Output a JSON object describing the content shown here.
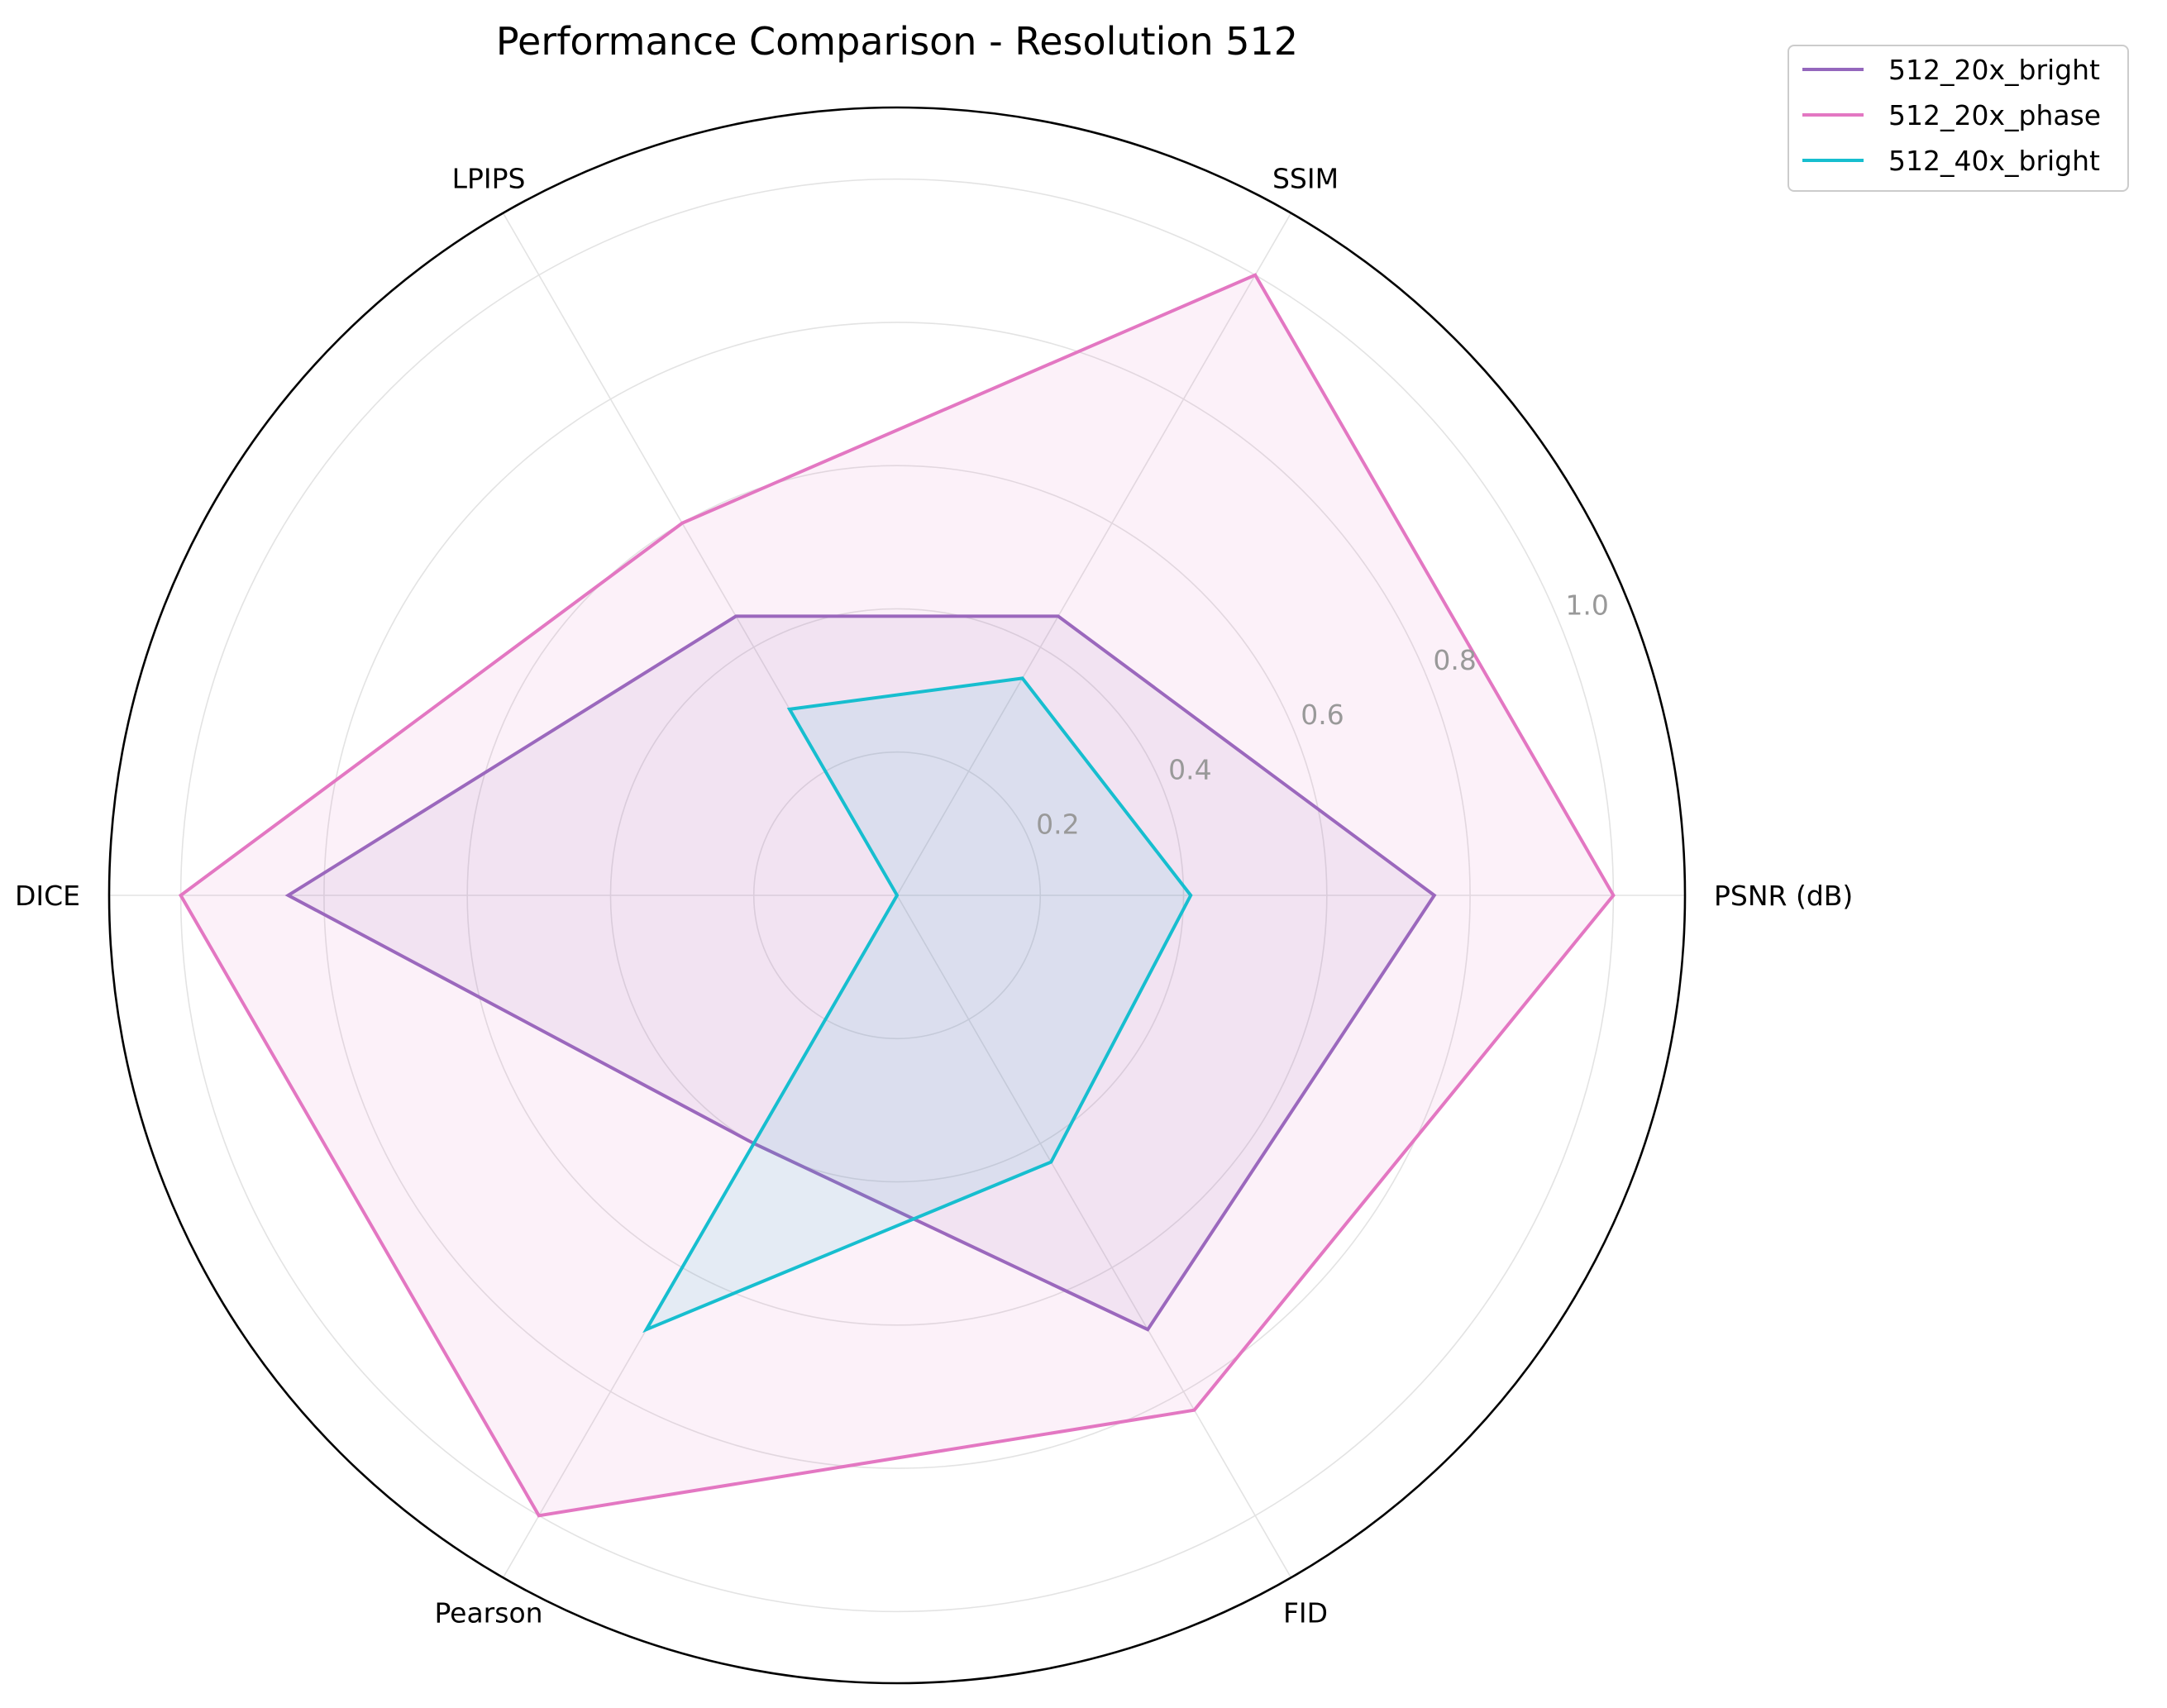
{
  "chart_data": {
    "type": "radar",
    "title": "Performance Comparison - Resolution 512",
    "axes": [
      "PSNR (dB)",
      "SSIM",
      "LPIPS",
      "DICE",
      "Pearson",
      "FID"
    ],
    "rlim": [
      0,
      1.1
    ],
    "rticks": [
      0.2,
      0.4,
      0.6,
      0.8,
      1.0
    ],
    "rtick_labels": [
      "0.2",
      "0.4",
      "0.6",
      "0.8",
      "1.0"
    ],
    "grid": true,
    "legend_position": "top-right, outside plot",
    "series": [
      {
        "name": "512_20x_bright",
        "color": "#9467bd",
        "fill_opacity": 0.1,
        "values": [
          0.75,
          0.45,
          0.45,
          0.85,
          0.4,
          0.7
        ]
      },
      {
        "name": "512_20x_phase",
        "color": "#e377c2",
        "fill_opacity": 0.1,
        "values": [
          1.0,
          1.0,
          0.6,
          1.0,
          1.0,
          0.83
        ]
      },
      {
        "name": "512_40x_bright",
        "color": "#17becf",
        "fill_opacity": 0.1,
        "values": [
          0.41,
          0.35,
          0.3,
          0.0,
          0.7,
          0.43
        ]
      }
    ]
  }
}
